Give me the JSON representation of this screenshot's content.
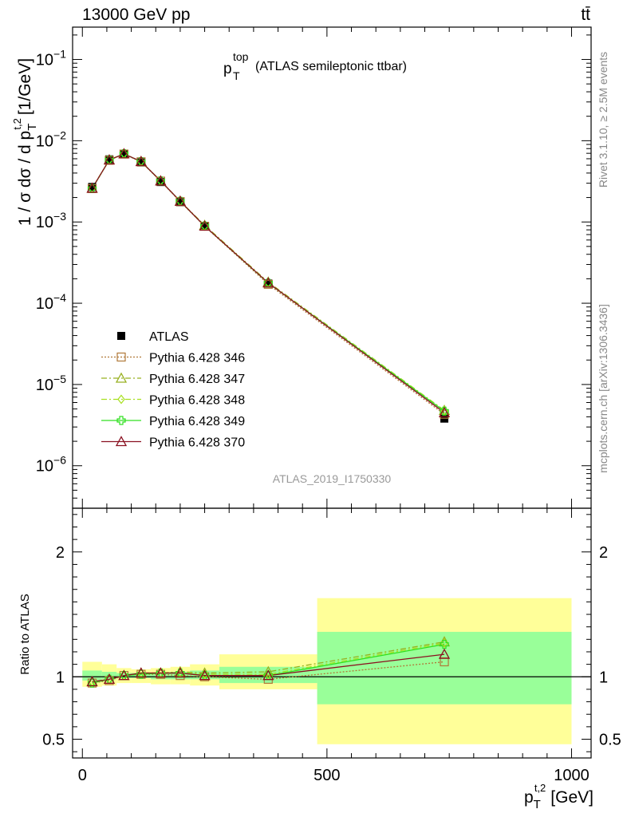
{
  "header": {
    "energy_label": "13000 GeV pp",
    "process_label": "tt̄"
  },
  "side_labels": {
    "rivet": "Rivet 3.1.10, ≥ 2.5M events",
    "mcplots": "mcplots.cern.ch [arXiv:1306.3436]"
  },
  "chart_data": [
    {
      "type": "line",
      "title": "(ATLAS semileptonic ttbar)",
      "title_var": "p",
      "title_sub": "T",
      "title_sup": "top",
      "analysis_id": "ATLAS_2019_I1750330",
      "ylabel": "1 / σ dσ / d p_T^{t,2} [1/GeV]",
      "ylabel_prefix": "1 / σ dσ / d p",
      "ylabel_sup": "t,2",
      "ylabel_sub": "T",
      "ylabel_unit": "[1/GeV]",
      "yscale": "log",
      "xlim": [
        -20,
        1040
      ],
      "ylim": [
        3e-07,
        0.25
      ],
      "yticks": [
        1e-06,
        1e-05,
        0.0001,
        0.001,
        0.01,
        0.1
      ],
      "ytick_labels": [
        {
          "base": "10",
          "exp": "−6"
        },
        {
          "base": "10",
          "exp": "−5"
        },
        {
          "base": "10",
          "exp": "−4"
        },
        {
          "base": "10",
          "exp": "−3"
        },
        {
          "base": "10",
          "exp": "−2"
        },
        {
          "base": "10",
          "exp": "−1"
        }
      ],
      "legend_position": "middle-left",
      "x": [
        20,
        55,
        85,
        120,
        160,
        200,
        250,
        380,
        740
      ],
      "series": [
        {
          "name": "ATLAS",
          "color": "#000000",
          "marker": "filled-square",
          "style": "points",
          "values": [
            0.0027,
            0.0059,
            0.0068,
            0.0054,
            0.0031,
            0.00175,
            0.00088,
            0.000175,
            3.8e-06
          ]
        },
        {
          "name": "Pythia 6.428 346",
          "color": "#b07838",
          "marker": "open-square",
          "style": "dotted",
          "values": [
            0.00258,
            0.00575,
            0.00685,
            0.0055,
            0.00318,
            0.00178,
            0.000885,
            0.000171,
            4.3e-06
          ]
        },
        {
          "name": "Pythia 6.428 347",
          "color": "#98b020",
          "marker": "open-triangle",
          "style": "dashdot",
          "values": [
            0.0026,
            0.0058,
            0.0069,
            0.00555,
            0.0032,
            0.0018,
            0.00091,
            0.000182,
            4.8e-06
          ]
        },
        {
          "name": "Pythia 6.428 348",
          "color": "#a8e020",
          "marker": "open-diamond",
          "style": "dashdot",
          "values": [
            0.0026,
            0.0058,
            0.0069,
            0.00555,
            0.0032,
            0.0018,
            0.00089,
            0.000178,
            4.8e-06
          ]
        },
        {
          "name": "Pythia 6.428 349",
          "color": "#30e020",
          "marker": "open-cross",
          "style": "solid",
          "values": [
            0.00258,
            0.0058,
            0.0069,
            0.00553,
            0.0032,
            0.0018,
            0.00089,
            0.000177,
            4.7e-06
          ]
        },
        {
          "name": "Pythia 6.428 370",
          "color": "#8a1020",
          "marker": "open-triangle",
          "style": "solid",
          "values": [
            0.0026,
            0.0058,
            0.0069,
            0.00555,
            0.0032,
            0.0018,
            0.00089,
            0.000178,
            4.5e-06
          ]
        }
      ]
    },
    {
      "type": "line",
      "xlabel": "p_T^{t,2} [GeV]",
      "xlabel_prefix": "p",
      "xlabel_sup": "t,2",
      "xlabel_sub": "T",
      "xlabel_unit": "[GeV]",
      "ylabel": "Ratio to ATLAS",
      "xlim": [
        -20,
        1040
      ],
      "ylim": [
        0.35,
        2.35
      ],
      "xticks": [
        0,
        500,
        1000
      ],
      "xtick_labels": [
        "0",
        "500",
        "1000"
      ],
      "yticks": [
        0.5,
        1,
        2
      ],
      "ytick_labels": [
        "0.5",
        "1",
        "2"
      ],
      "bands": [
        {
          "x0": 0,
          "x1": 40,
          "yellow": [
            0.92,
            1.12
          ],
          "green": [
            0.97,
            1.05
          ]
        },
        {
          "x0": 40,
          "x1": 70,
          "yellow": [
            0.93,
            1.1
          ],
          "green": [
            0.98,
            1.04
          ]
        },
        {
          "x0": 70,
          "x1": 100,
          "yellow": [
            0.95,
            1.07
          ],
          "green": [
            0.99,
            1.03
          ]
        },
        {
          "x0": 100,
          "x1": 140,
          "yellow": [
            0.95,
            1.06
          ],
          "green": [
            0.99,
            1.03
          ]
        },
        {
          "x0": 140,
          "x1": 180,
          "yellow": [
            0.94,
            1.07
          ],
          "green": [
            0.98,
            1.03
          ]
        },
        {
          "x0": 180,
          "x1": 220,
          "yellow": [
            0.94,
            1.08
          ],
          "green": [
            0.98,
            1.04
          ]
        },
        {
          "x0": 220,
          "x1": 280,
          "yellow": [
            0.93,
            1.1
          ],
          "green": [
            0.98,
            1.05
          ]
        },
        {
          "x0": 280,
          "x1": 480,
          "yellow": [
            0.9,
            1.18
          ],
          "green": [
            0.95,
            1.08
          ]
        },
        {
          "x0": 480,
          "x1": 1000,
          "yellow": [
            0.46,
            1.63
          ],
          "green": [
            0.78,
            1.36
          ]
        }
      ],
      "x": [
        20,
        55,
        85,
        120,
        160,
        200,
        250,
        380,
        740
      ],
      "series": [
        {
          "name": "Pythia 6.428 346",
          "values": [
            0.95,
            0.97,
            1.01,
            1.02,
            1.02,
            1.01,
            1.0,
            0.98,
            1.12
          ]
        },
        {
          "name": "Pythia 6.428 347",
          "values": [
            0.96,
            0.98,
            1.01,
            1.03,
            1.03,
            1.04,
            1.03,
            1.04,
            1.28
          ]
        },
        {
          "name": "Pythia 6.428 348",
          "values": [
            0.96,
            0.98,
            1.01,
            1.03,
            1.03,
            1.03,
            1.02,
            1.02,
            1.27
          ]
        },
        {
          "name": "Pythia 6.428 349",
          "values": [
            0.95,
            0.98,
            1.01,
            1.02,
            1.03,
            1.03,
            1.01,
            1.01,
            1.26
          ]
        },
        {
          "name": "Pythia 6.428 370",
          "values": [
            0.96,
            0.98,
            1.01,
            1.03,
            1.03,
            1.03,
            1.01,
            1.01,
            1.18
          ]
        }
      ]
    }
  ]
}
